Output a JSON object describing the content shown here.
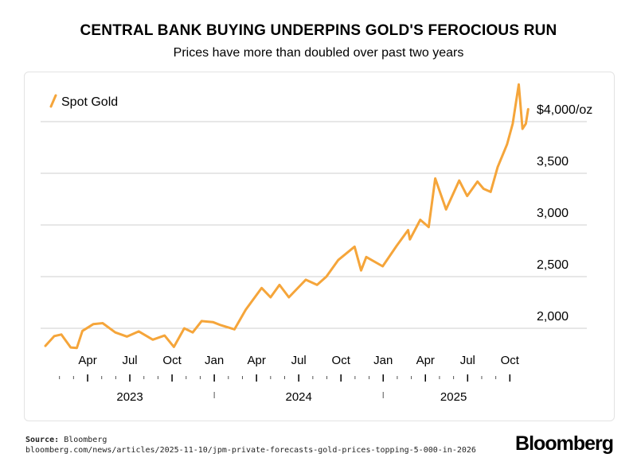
{
  "header": {
    "title": "CENTRAL BANK BUYING UNDERPINS GOLD'S FEROCIOUS RUN",
    "subtitle": "Prices have more than doubled over past two years"
  },
  "footer": {
    "source_label": "Source:",
    "source_name": "Bloomberg",
    "url": "bloomberg.com/news/articles/2025-11-10/jpm-private-forecasts-gold-prices-topping-5-000-in-2026",
    "brand": "Bloomberg"
  },
  "colors": {
    "series": "#f5a53a",
    "grid": "#cfcfcf",
    "axis": "#000000"
  },
  "chart_data": {
    "type": "line",
    "x_unit": "month",
    "y_unit": "USD/oz",
    "ylim": [
      1800,
      4300
    ],
    "xlim": [
      "2023-01",
      "2025-11"
    ],
    "grid": true,
    "legend_position": "top-left",
    "y_ticks": [
      {
        "value": 2000,
        "label": "2,000"
      },
      {
        "value": 2500,
        "label": "2,500"
      },
      {
        "value": 3000,
        "label": "3,000"
      },
      {
        "value": 3500,
        "label": "3,500"
      },
      {
        "value": 4000,
        "label": "$4,000/oz"
      }
    ],
    "x_month_labels": [
      {
        "x": "2023-04",
        "label": "Apr"
      },
      {
        "x": "2023-07",
        "label": "Jul"
      },
      {
        "x": "2023-10",
        "label": "Oct"
      },
      {
        "x": "2024-01",
        "label": "Jan"
      },
      {
        "x": "2024-04",
        "label": "Apr"
      },
      {
        "x": "2024-07",
        "label": "Jul"
      },
      {
        "x": "2024-10",
        "label": "Oct"
      },
      {
        "x": "2025-01",
        "label": "Jan"
      },
      {
        "x": "2025-04",
        "label": "Apr"
      },
      {
        "x": "2025-07",
        "label": "Jul"
      },
      {
        "x": "2025-10",
        "label": "Oct"
      }
    ],
    "x_year_labels": [
      {
        "x": "2023-07",
        "label": "2023"
      },
      {
        "x": "2024-07",
        "label": "2024"
      },
      {
        "x": "2025-06",
        "label": "2025"
      }
    ],
    "series": [
      {
        "name": "Spot Gold",
        "points": [
          [
            "2023-01-01",
            1830
          ],
          [
            "2023-01-20",
            1925
          ],
          [
            "2023-02-05",
            1940
          ],
          [
            "2023-02-25",
            1815
          ],
          [
            "2023-03-08",
            1810
          ],
          [
            "2023-03-20",
            1975
          ],
          [
            "2023-04-13",
            2040
          ],
          [
            "2023-05-03",
            2050
          ],
          [
            "2023-05-30",
            1960
          ],
          [
            "2023-06-25",
            1920
          ],
          [
            "2023-07-20",
            1970
          ],
          [
            "2023-08-20",
            1890
          ],
          [
            "2023-09-15",
            1930
          ],
          [
            "2023-10-05",
            1820
          ],
          [
            "2023-10-27",
            2000
          ],
          [
            "2023-11-15",
            1960
          ],
          [
            "2023-12-04",
            2070
          ],
          [
            "2023-12-28",
            2060
          ],
          [
            "2024-01-15",
            2030
          ],
          [
            "2024-02-14",
            1990
          ],
          [
            "2024-03-08",
            2180
          ],
          [
            "2024-04-12",
            2390
          ],
          [
            "2024-05-01",
            2300
          ],
          [
            "2024-05-20",
            2420
          ],
          [
            "2024-06-10",
            2300
          ],
          [
            "2024-07-16",
            2470
          ],
          [
            "2024-08-10",
            2420
          ],
          [
            "2024-08-30",
            2500
          ],
          [
            "2024-09-25",
            2660
          ],
          [
            "2024-10-30",
            2790
          ],
          [
            "2024-11-14",
            2560
          ],
          [
            "2024-11-25",
            2690
          ],
          [
            "2024-12-30",
            2600
          ],
          [
            "2025-01-30",
            2800
          ],
          [
            "2025-02-24",
            2950
          ],
          [
            "2025-02-28",
            2860
          ],
          [
            "2025-03-20",
            3050
          ],
          [
            "2025-04-08",
            2980
          ],
          [
            "2025-04-22",
            3450
          ],
          [
            "2025-05-15",
            3150
          ],
          [
            "2025-06-13",
            3430
          ],
          [
            "2025-06-30",
            3280
          ],
          [
            "2025-07-22",
            3420
          ],
          [
            "2025-08-05",
            3350
          ],
          [
            "2025-08-20",
            3320
          ],
          [
            "2025-09-05",
            3560
          ],
          [
            "2025-09-25",
            3780
          ],
          [
            "2025-10-07",
            3980
          ],
          [
            "2025-10-20",
            4360
          ],
          [
            "2025-10-28",
            3930
          ],
          [
            "2025-11-05",
            3980
          ],
          [
            "2025-11-10",
            4120
          ]
        ]
      }
    ]
  }
}
